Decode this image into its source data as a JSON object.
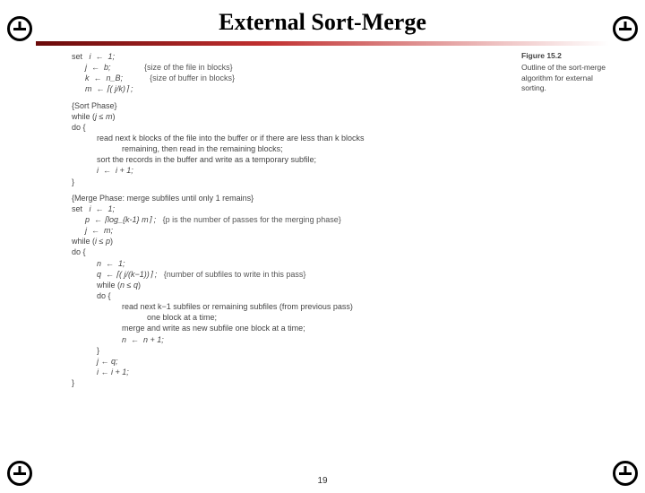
{
  "title": "External Sort-Merge",
  "figure": {
    "num": "Figure 15.2",
    "caption": "Outline of the sort-merge algorithm for external sorting."
  },
  "init": {
    "set": "set",
    "l1": "i  ←  1;",
    "l2": "j  ←  b;",
    "l2c": "{size of the file in blocks}",
    "l3": "k  ←  n_B;",
    "l3c": "{size of buffer in blocks}",
    "l4": "m  ← ⌈( j/k)⌉ ;"
  },
  "sort": {
    "heading": "{Sort Phase}",
    "w": "while (j ≤ m)",
    "do": "do {",
    "b1": "read next k blocks of the file into the buffer or if there are less than k blocks",
    "b1b": "remaining, then read in the remaining blocks;",
    "b2": "sort the records in the buffer and write as a temporary subfile;",
    "b3": "i  ←  i + 1;",
    "close": "}"
  },
  "merge": {
    "heading": "{Merge Phase: merge subfiles until only 1 remains}",
    "set": "set",
    "m1": "i  ←  1;",
    "m2": "p  ← ⌈log_{k-1} m⌉ ;",
    "m2c": "{p is the number of passes for the merging phase}",
    "m3": "j  ←  m;",
    "w1": "while (i ≤ p)",
    "do1": "do {",
    "n1": "n  ←  1;",
    "n2": "q  ← ⌈( j/(k−1))⌉ ;",
    "n2c": "{number of subfiles to write in this pass}",
    "w2": "while (n ≤ q)",
    "do2": "do {",
    "r1": "read next k−1 subfiles or remaining subfiles (from previous pass)",
    "r1b": "one block at a time;",
    "r2": "merge and write as new subfile one block at a time;",
    "r3": "n  ←  n + 1;",
    "close2": "}",
    "j2": "j ← q;",
    "i2": "i ← i + 1;",
    "close1": "}"
  },
  "page_number": "19",
  "colors": {
    "text": "#444444",
    "title": "#000000",
    "gradient_start": "#6a0a0a",
    "gradient_mid": "#c13030",
    "gradient_end": "#ffffff",
    "background": "#ffffff"
  }
}
